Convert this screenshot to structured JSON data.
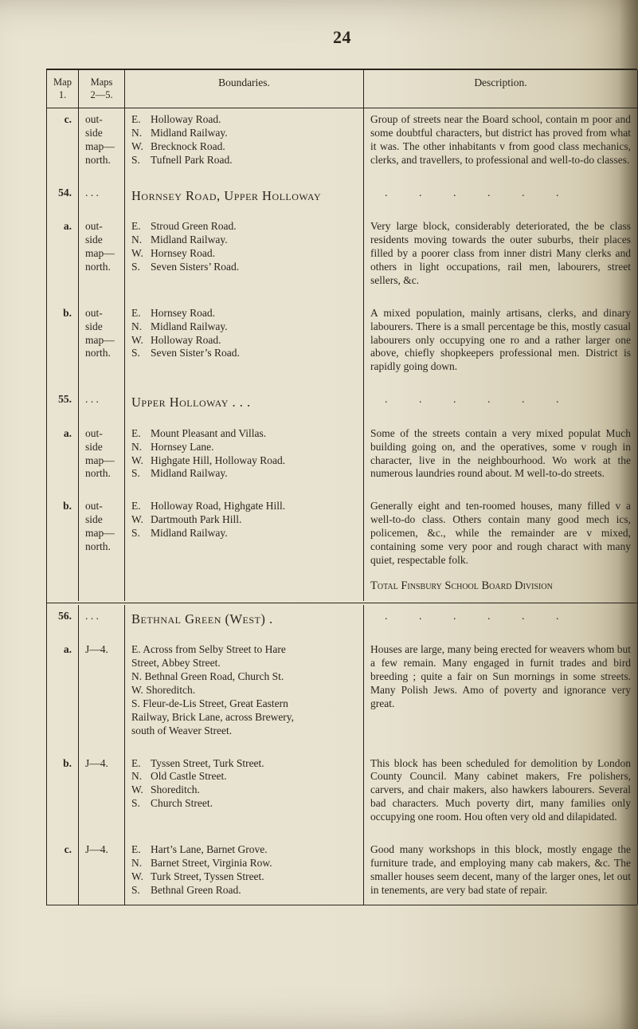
{
  "page_number": "24",
  "columns": {
    "col1_line1": "Map",
    "col1_line2": "1.",
    "col2_line1": "Maps",
    "col2_line2": "2—5.",
    "col3": "Boundaries.",
    "col4": "Description."
  },
  "rows": [
    {
      "id": "c.",
      "maps": "out-\nside\nmap—\nnorth.",
      "district": "",
      "nesw": {
        "E": "Holloway Road.",
        "N": "Midland Railway.",
        "W": "Brecknock Road.",
        "S": "Tufnell Park Road."
      },
      "desc": "Group of streets near the Board school, contain m\npoor and some doubtful characters, but district has\nproved from what it was.  The other inhabitants v\nfrom good class mechanics, clerks, and travellers, to\nprofessional and well-to-do classes."
    },
    {
      "id": "54.",
      "sub_id": "a.",
      "sub_maps": "out-\nside\nmap—\nnorth.",
      "maps_head": ". . .",
      "district": "Hornsey Road, Upper Holloway",
      "nesw": {
        "E": "Stroud Green Road.",
        "N": "Midland Railway.",
        "W": "Hornsey Road.",
        "S": "Seven Sisters’ Road."
      },
      "desc_head_dots": ".     .     .     .     .     .",
      "desc": "Very large block, considerably deteriorated, the be\nclass residents moving towards the outer suburbs,\ntheir places filled by a poorer class from inner distri\nMany clerks and others in light occupations, rail\nmen, labourers, street sellers, &c."
    },
    {
      "id": "b.",
      "maps": "out-\nside\nmap—\nnorth.",
      "district": "",
      "nesw": {
        "E": "Hornsey Road.",
        "N": "Midland Railway.",
        "W": "Holloway Road.",
        "S": "Seven Sister’s Road."
      },
      "desc": "A mixed population, mainly artisans, clerks, and\ndinary labourers.  There is a small percentage be\nthis, mostly casual labourers only occupying one ro\nand a rather larger one above, chiefly shopkeepers\nprofessional men.  District is rapidly going down."
    },
    {
      "id": "55.",
      "sub_id": "a.",
      "sub_maps": "out-\nside\nmap—\nnorth.",
      "maps_head": ". . .",
      "district": "Upper Holloway  .     .     .",
      "nesw": {
        "E": "Mount Pleasant and Villas.",
        "N": "Hornsey Lane.",
        "W": "Highgate Hill, Holloway Road.",
        "S": "Midland Railway."
      },
      "desc_head_dots": ".     .     .     .     .     .",
      "desc": "Some of the streets contain a very mixed populat\nMuch building going on, and the operatives, some v\nrough in character, live in the neighbourhood.  Wo\nwork at the numerous laundries round about.  M\nwell-to-do streets."
    },
    {
      "id": "b.",
      "maps": "out-\nside\nmap—\nnorth.",
      "district": "",
      "nesw": {
        "E": "Holloway Road, Highgate Hill.",
        "W": "Dartmouth Park Hill.",
        "S": "Midland Railway."
      },
      "desc": "Generally eight and ten-roomed houses, many filled v\na well-to-do class.  Others contain many good mech\nics, policemen, &c., while the remainder are v\nmixed, containing some very poor and rough charact\nwith many quiet, respectable folk.",
      "total": "Total Finsbury School Board Division"
    },
    {
      "id": "56.",
      "sub_id": "a.",
      "sub_maps": "J—4.",
      "maps_head": ". . .",
      "district": "Bethnal Green (West)     .",
      "bound_lines": "E. Across from Selby Street to Hare\n    Street, Abbey Street.\nN. Bethnal Green Road, Church St.\nW. Shoreditch.\nS. Fleur-de-Lis Street, Great Eastern\n    Railway, Brick Lane, across Brewery,\n    south of Weaver Street.",
      "desc_head_dots": ".     .     .     .     .     .",
      "desc": "Houses are large, many being erected for weavers\nwhom but a few remain.  Many engaged in furnit\ntrades and bird breeding ; quite a fair on Sun\nmornings in some streets.  Many Polish Jews.  Amo\nof poverty and ignorance very great."
    },
    {
      "id": "b.",
      "maps": "J—4.",
      "district": "",
      "nesw": {
        "E": "Tyssen Street, Turk Street.",
        "N": "Old Castle Street.",
        "W": "Shoreditch.",
        "S": "Church Street."
      },
      "desc": "This block has been scheduled for demolition by\nLondon County Council.  Many cabinet makers, Fre\npolishers, carvers, and chair makers, also hawkers\nlabourers.  Several bad characters.  Much poverty\ndirt, many families only occupying one room.  Hou\noften very old and dilapidated."
    },
    {
      "id": "c.",
      "maps": "J—4.",
      "district": "",
      "nesw": {
        "E": "Hart’s Lane, Barnet Grove.",
        "N": "Barnet Street, Virginia Row.",
        "W": "Turk Street, Tyssen Street.",
        "S": "Bethnal Green Road."
      },
      "desc": "Good many workshops in this block, mostly engage\nthe furniture trade, and employing many cab\nmakers, &c.  The smaller houses seem decent,\nmany of the larger ones, let out in tenements, are\nvery bad state of repair."
    }
  ],
  "style": {
    "background": "#e7e1cf",
    "text_color": "#2a251c",
    "rule_color": "#2a251c",
    "body_fontsize_pt": 10,
    "heading_fontsize_pt": 12
  }
}
